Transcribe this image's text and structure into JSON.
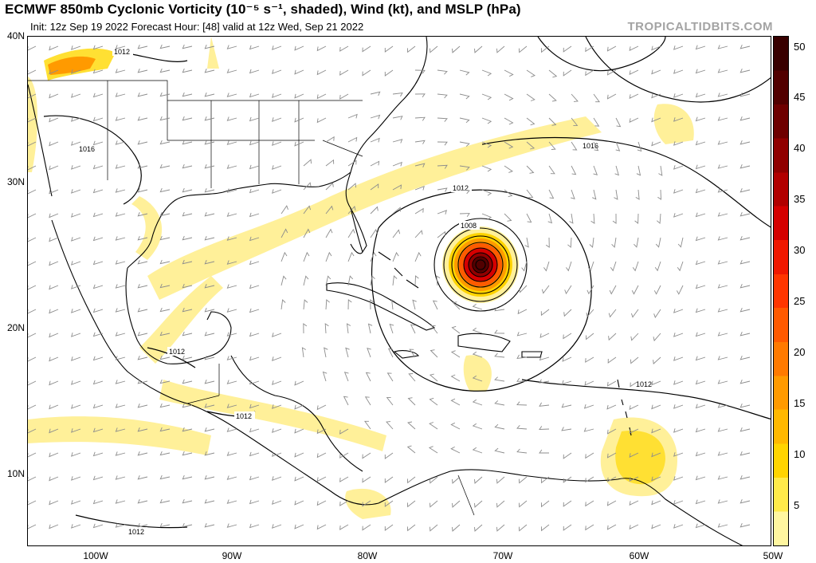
{
  "header": {
    "title": "ECMWF 850mb Cyclonic Vorticity (10⁻⁵ s⁻¹, shaded), Wind (kt), and MSLP (hPa)",
    "subtitle": "Init: 12z Sep 19 2022   Forecast Hour: [48]   valid at 12z Wed, Sep 21 2022",
    "site": "TROPICALTIDBITS.COM"
  },
  "map": {
    "lat_labels": [
      "40N",
      "30N",
      "20N",
      "10N"
    ],
    "lon_labels": [
      "100W",
      "90W",
      "80W",
      "70W",
      "60W",
      "50W"
    ],
    "isobar_labels": [
      "1012",
      "1016",
      "1016",
      "1012",
      "1008",
      "1012",
      "1012",
      "1012",
      "1012"
    ],
    "storm_center": {
      "lat": 24.2,
      "lon": -71.4
    }
  },
  "colorbar": {
    "ticks": [
      "50",
      "45",
      "40",
      "35",
      "30",
      "25",
      "20",
      "15",
      "10",
      "5"
    ],
    "colors": [
      "#fff6a0",
      "#ffea4a",
      "#ffd400",
      "#ffb800",
      "#ff9a00",
      "#ff7a00",
      "#ff5a00",
      "#ff3600",
      "#f01800",
      "#d50000",
      "#b20000",
      "#900000",
      "#6e0000",
      "#520000",
      "#380000"
    ]
  }
}
